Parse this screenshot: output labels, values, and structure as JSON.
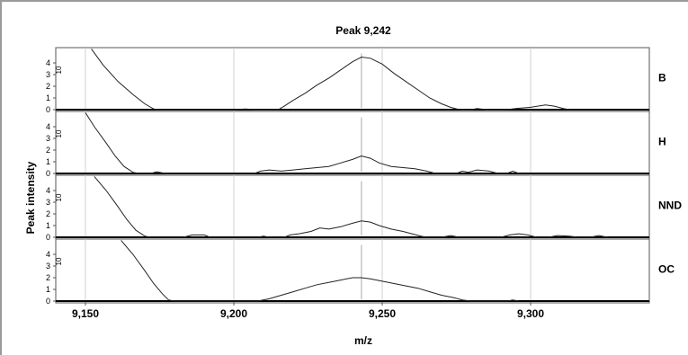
{
  "chart_data": {
    "type": "line",
    "title": "Peak 9,242",
    "xlabel": "m/z",
    "ylabel": "Peak intensity",
    "xlim": [
      9140,
      9340
    ],
    "ylim": [
      0,
      5
    ],
    "x_ticks": [
      9150,
      9200,
      9250,
      9300
    ],
    "x_tick_labels": [
      "9,150",
      "9,200",
      "9,250",
      "9,300"
    ],
    "y_ticks": [
      0,
      1,
      2,
      3,
      4
    ],
    "grid": true,
    "marker_x": 9243,
    "series": [
      {
        "name": "B",
        "id_label": "10",
        "points": [
          [
            9152,
            5.2
          ],
          [
            9156,
            3.8
          ],
          [
            9161,
            2.4
          ],
          [
            9166,
            1.3
          ],
          [
            9170,
            0.5
          ],
          [
            9173,
            0.05
          ],
          [
            9175,
            0
          ],
          [
            9200,
            0
          ],
          [
            9204,
            0.05
          ],
          [
            9207,
            0
          ],
          [
            9215,
            0
          ],
          [
            9217,
            0.3
          ],
          [
            9220,
            0.8
          ],
          [
            9224,
            1.4
          ],
          [
            9228,
            2.1
          ],
          [
            9232,
            2.7
          ],
          [
            9236,
            3.4
          ],
          [
            9240,
            4.1
          ],
          [
            9243,
            4.5
          ],
          [
            9246,
            4.4
          ],
          [
            9250,
            3.9
          ],
          [
            9254,
            3.1
          ],
          [
            9258,
            2.4
          ],
          [
            9262,
            1.7
          ],
          [
            9266,
            1.0
          ],
          [
            9270,
            0.5
          ],
          [
            9273,
            0.2
          ],
          [
            9276,
            0
          ],
          [
            9280,
            0
          ],
          [
            9282,
            0.1
          ],
          [
            9285,
            0
          ],
          [
            9292,
            0
          ],
          [
            9295,
            0.1
          ],
          [
            9300,
            0.2
          ],
          [
            9305,
            0.4
          ],
          [
            9308,
            0.3
          ],
          [
            9311,
            0.1
          ],
          [
            9313,
            0
          ]
        ]
      },
      {
        "name": "H",
        "id_label": "10",
        "points": [
          [
            9150,
            5.2
          ],
          [
            9153,
            4.0
          ],
          [
            9157,
            2.6
          ],
          [
            9160,
            1.5
          ],
          [
            9163,
            0.6
          ],
          [
            9166,
            0.1
          ],
          [
            9168,
            0
          ],
          [
            9172,
            0
          ],
          [
            9174,
            0.15
          ],
          [
            9177,
            0
          ],
          [
            9207,
            0
          ],
          [
            9209,
            0.2
          ],
          [
            9212,
            0.3
          ],
          [
            9216,
            0.2
          ],
          [
            9220,
            0.3
          ],
          [
            9224,
            0.4
          ],
          [
            9228,
            0.5
          ],
          [
            9232,
            0.6
          ],
          [
            9236,
            0.9
          ],
          [
            9240,
            1.2
          ],
          [
            9243,
            1.5
          ],
          [
            9246,
            1.3
          ],
          [
            9249,
            0.9
          ],
          [
            9253,
            0.6
          ],
          [
            9257,
            0.5
          ],
          [
            9261,
            0.4
          ],
          [
            9265,
            0.2
          ],
          [
            9268,
            0
          ],
          [
            9275,
            0
          ],
          [
            9277,
            0.2
          ],
          [
            9279,
            0.1
          ],
          [
            9282,
            0.3
          ],
          [
            9286,
            0.2
          ],
          [
            9289,
            0
          ],
          [
            9292,
            0
          ],
          [
            9294,
            0.2
          ],
          [
            9296,
            0
          ]
        ]
      },
      {
        "name": "NND",
        "id_label": "10",
        "points": [
          [
            9153,
            5.2
          ],
          [
            9157,
            4.0
          ],
          [
            9161,
            2.6
          ],
          [
            9164,
            1.5
          ],
          [
            9167,
            0.6
          ],
          [
            9170,
            0.1
          ],
          [
            9172,
            0
          ],
          [
            9183,
            0
          ],
          [
            9186,
            0.2
          ],
          [
            9190,
            0.2
          ],
          [
            9192,
            0
          ],
          [
            9208,
            0
          ],
          [
            9210,
            0.1
          ],
          [
            9212,
            0
          ],
          [
            9217,
            0
          ],
          [
            9219,
            0.2
          ],
          [
            9222,
            0.3
          ],
          [
            9226,
            0.5
          ],
          [
            9229,
            0.8
          ],
          [
            9232,
            0.7
          ],
          [
            9236,
            0.9
          ],
          [
            9240,
            1.2
          ],
          [
            9243,
            1.4
          ],
          [
            9246,
            1.3
          ],
          [
            9249,
            1.0
          ],
          [
            9253,
            0.7
          ],
          [
            9257,
            0.5
          ],
          [
            9260,
            0.3
          ],
          [
            9263,
            0.1
          ],
          [
            9265,
            0
          ],
          [
            9270,
            0
          ],
          [
            9273,
            0.15
          ],
          [
            9276,
            0
          ],
          [
            9290,
            0
          ],
          [
            9293,
            0.2
          ],
          [
            9296,
            0.3
          ],
          [
            9299,
            0.2
          ],
          [
            9302,
            0
          ],
          [
            9306,
            0
          ],
          [
            9309,
            0.15
          ],
          [
            9313,
            0.1
          ],
          [
            9316,
            0
          ],
          [
            9320,
            0
          ],
          [
            9323,
            0.15
          ],
          [
            9326,
            0
          ]
        ]
      },
      {
        "name": "OC",
        "id_label": "10",
        "points": [
          [
            9162,
            5.2
          ],
          [
            9166,
            4.0
          ],
          [
            9170,
            2.6
          ],
          [
            9173,
            1.5
          ],
          [
            9176,
            0.6
          ],
          [
            9178,
            0.1
          ],
          [
            9180,
            0
          ],
          [
            9208,
            0
          ],
          [
            9212,
            0.2
          ],
          [
            9216,
            0.5
          ],
          [
            9220,
            0.8
          ],
          [
            9224,
            1.1
          ],
          [
            9228,
            1.4
          ],
          [
            9232,
            1.6
          ],
          [
            9236,
            1.8
          ],
          [
            9240,
            2.0
          ],
          [
            9243,
            2.0
          ],
          [
            9246,
            1.9
          ],
          [
            9250,
            1.7
          ],
          [
            9254,
            1.5
          ],
          [
            9258,
            1.3
          ],
          [
            9262,
            1.1
          ],
          [
            9266,
            0.8
          ],
          [
            9270,
            0.5
          ],
          [
            9274,
            0.3
          ],
          [
            9277,
            0.1
          ],
          [
            9280,
            0
          ],
          [
            9292,
            0
          ],
          [
            9294,
            0.1
          ],
          [
            9296,
            0
          ]
        ]
      }
    ]
  }
}
